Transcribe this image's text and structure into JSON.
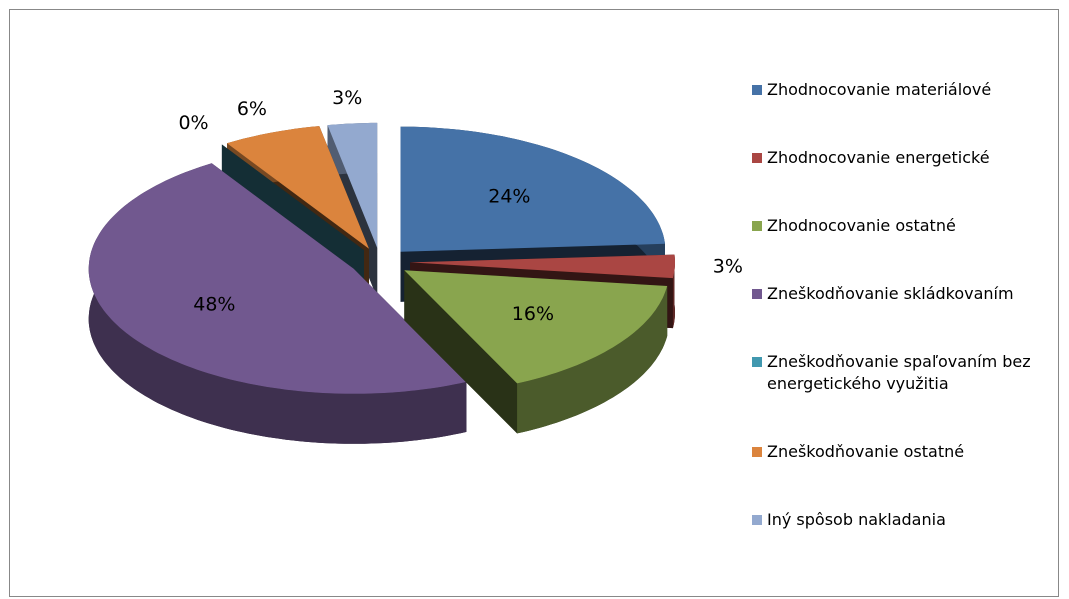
{
  "chart_data": {
    "type": "pie",
    "categories": [
      "Zhodnocovanie materiálové",
      "Zhodnocovanie energetické",
      "Zhodnocovanie ostatné",
      "Zneškodňovanie skládkovaním",
      "Zneškodňovanie spaľovaním bez energetického využitia",
      "Zneškodňovanie ostatné",
      "Iný spôsob nakladania"
    ],
    "values": [
      24,
      3,
      16,
      48,
      0,
      6,
      3
    ],
    "value_labels": [
      "24%",
      "3%",
      "16%",
      "48%",
      "0%",
      "6%",
      "3%"
    ],
    "colors": [
      "#4572a7",
      "#aa4643",
      "#89a54e",
      "#71588f",
      "#4198af",
      "#db843d",
      "#93a9cf"
    ],
    "legend": "right"
  }
}
